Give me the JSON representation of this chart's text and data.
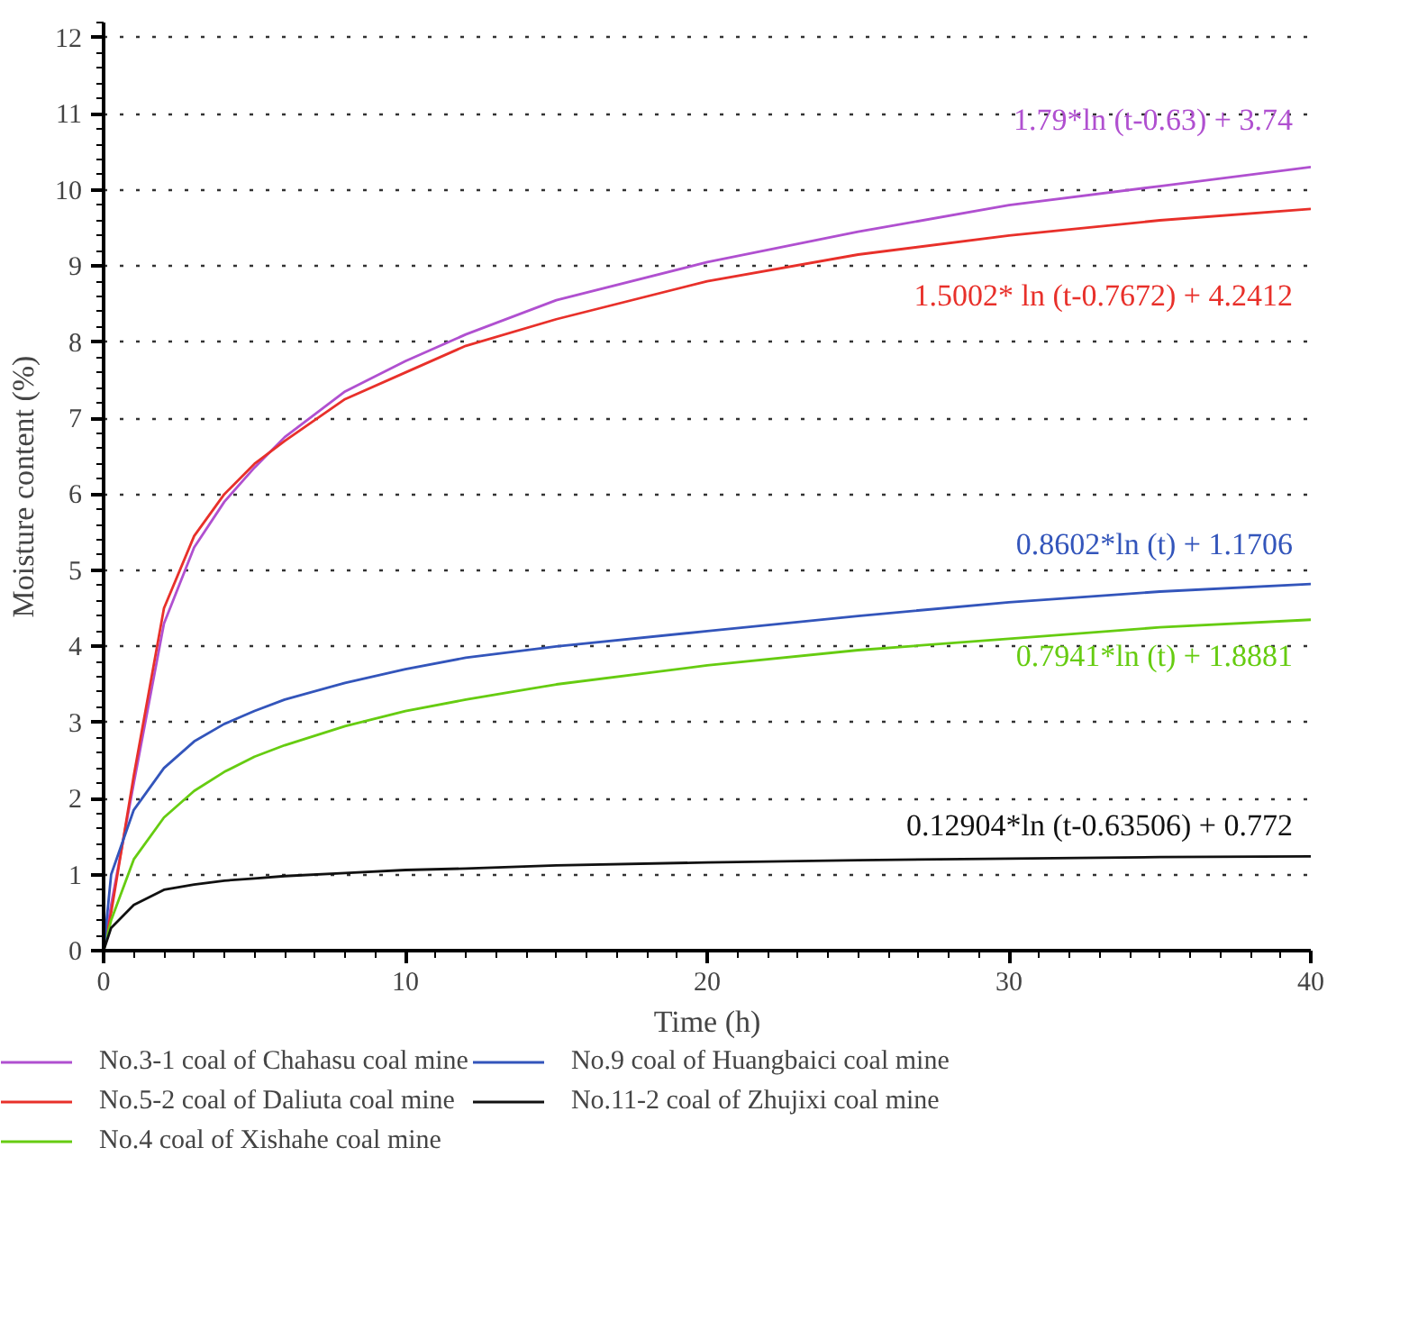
{
  "chart_data": {
    "type": "line",
    "xlabel": "Time (h)",
    "ylabel": "Moisture content (%)",
    "x": [
      0,
      0.25,
      1,
      2,
      3,
      4,
      5,
      6,
      8,
      10,
      12,
      15,
      20,
      25,
      30,
      35,
      40
    ],
    "series": [
      {
        "name": "No.3-1 coal of Chahasu coal mine",
        "color": "#b050d0",
        "values": [
          0,
          0.6,
          2.2,
          4.3,
          5.3,
          5.9,
          6.35,
          6.75,
          7.35,
          7.75,
          8.1,
          8.55,
          9.05,
          9.45,
          9.8,
          10.05,
          10.3
        ]
      },
      {
        "name": "No.5-2 coal of Daliuta coal mine",
        "color": "#e8302a",
        "values": [
          0,
          0.5,
          2.3,
          4.5,
          5.45,
          6.0,
          6.4,
          6.7,
          7.25,
          7.6,
          7.95,
          8.3,
          8.8,
          9.15,
          9.4,
          9.6,
          9.75
        ]
      },
      {
        "name": "No.4 coal of Xishahe coal mine",
        "color": "#66cc11",
        "values": [
          0,
          0.4,
          1.2,
          1.75,
          2.1,
          2.35,
          2.55,
          2.7,
          2.95,
          3.15,
          3.3,
          3.5,
          3.75,
          3.95,
          4.1,
          4.25,
          4.35
        ]
      },
      {
        "name": "No.9 coal of Huangbaici coal mine",
        "color": "#3355bb",
        "values": [
          0,
          1.0,
          1.85,
          2.4,
          2.75,
          2.98,
          3.15,
          3.3,
          3.52,
          3.7,
          3.85,
          4.0,
          4.2,
          4.4,
          4.58,
          4.72,
          4.82
        ]
      },
      {
        "name": "No.11-2 coal of Zhujixi coal mine",
        "color": "#111111",
        "values": [
          0,
          0.3,
          0.6,
          0.8,
          0.87,
          0.92,
          0.95,
          0.98,
          1.02,
          1.06,
          1.08,
          1.12,
          1.16,
          1.19,
          1.21,
          1.23,
          1.24
        ]
      }
    ],
    "annotations": [
      "1.79*ln (t-0.63) + 3.74",
      "1.5002* ln (t-0.7672) + 4.2412",
      "0.7941*ln (t) + 1.8881",
      "0.8602*ln (t) + 1.1706",
      "0.12904*ln (t-0.63506) + 0.772"
    ],
    "xlim": [
      0,
      40
    ],
    "ylim": [
      0,
      12.2
    ],
    "xticks": [
      0,
      10,
      20,
      30,
      40
    ],
    "yticks": [
      0,
      1,
      2,
      3,
      4,
      5,
      6,
      7,
      8,
      9,
      10,
      11,
      12
    ],
    "grid": "y",
    "legend": "bottom",
    "marker": "none",
    "line_style": "solid"
  }
}
